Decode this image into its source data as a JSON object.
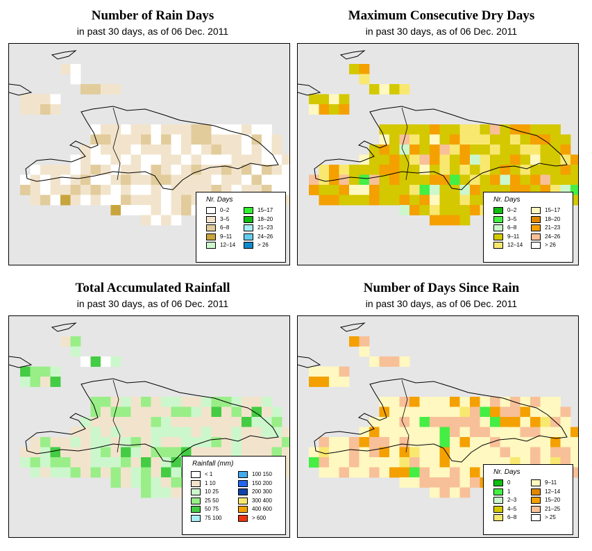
{
  "panels": [
    {
      "id": "rain_days",
      "title": "Number of Rain Days",
      "subtitle": "in past 30 days, as of  06 Dec. 2011",
      "legend": {
        "title": "Nr. Days",
        "items": [
          {
            "label": "0–2",
            "color": "#ffffff"
          },
          {
            "label": "3–5",
            "color": "#f2e4cc"
          },
          {
            "label": "6–8",
            "color": "#e2cc9c"
          },
          {
            "label": "9–11",
            "color": "#c8a43c"
          },
          {
            "label": "12–14",
            "color": "#ccf7cc"
          },
          {
            "label": "15–17",
            "color": "#33ee33"
          },
          {
            "label": "18–20",
            "color": "#11bb11"
          },
          {
            "label": "21–23",
            "color": "#aaeef6"
          },
          {
            "label": "24–26",
            "color": "#66ccee"
          },
          {
            "label": "> 26",
            "color": "#1188cc"
          }
        ]
      }
    },
    {
      "id": "dry_days",
      "title": "Maximum Consecutive Dry Days",
      "subtitle": "in past 30 days, as of  06 Dec. 2011",
      "legend": {
        "title": "Nr. Days",
        "items": [
          {
            "label": "0–2",
            "color": "#11bb11"
          },
          {
            "label": "3–5",
            "color": "#44ee44"
          },
          {
            "label": "6–8",
            "color": "#ccf7cc"
          },
          {
            "label": "9–11",
            "color": "#d4c800"
          },
          {
            "label": "12–14",
            "color": "#f8e870"
          },
          {
            "label": "15–17",
            "color": "#fff8c0"
          },
          {
            "label": "18–20",
            "color": "#dd8800"
          },
          {
            "label": "21–23",
            "color": "#f4a000"
          },
          {
            "label": "24–26",
            "color": "#f8c098"
          },
          {
            "label": "> 26",
            "color": "#ffffff"
          }
        ]
      }
    },
    {
      "id": "rainfall",
      "title": "Total Accumulated Rainfall",
      "subtitle": "in past 30 days, as of  06 Dec. 2011",
      "legend": {
        "title": "Rainfall (mm)",
        "items": [
          {
            "label": "< 1",
            "color": "#ffffff"
          },
          {
            "label": "1    10",
            "color": "#f2e4cc"
          },
          {
            "label": "10    25",
            "color": "#ccf7cc"
          },
          {
            "label": "25    50",
            "color": "#99ee88"
          },
          {
            "label": "50    75",
            "color": "#44cc44"
          },
          {
            "label": "75   100",
            "color": "#aaeef6"
          },
          {
            "label": "100   150",
            "color": "#44aaee"
          },
          {
            "label": "150   200",
            "color": "#2266ee"
          },
          {
            "label": "200   300",
            "color": "#1144aa"
          },
          {
            "label": "300   400",
            "color": "#f8e870"
          },
          {
            "label": "400   600",
            "color": "#f4a000"
          },
          {
            "label": "> 600",
            "color": "#ee3311"
          }
        ]
      }
    },
    {
      "id": "days_since",
      "title": "Number of Days Since Rain",
      "subtitle": "in past 30 days, as of  06 Dec. 2011",
      "legend": {
        "title": "Nr. Days",
        "items": [
          {
            "label": "0",
            "color": "#11bb11"
          },
          {
            "label": "1",
            "color": "#44ee44"
          },
          {
            "label": "2–3",
            "color": "#ccf7cc"
          },
          {
            "label": "4–5",
            "color": "#d4c800"
          },
          {
            "label": "6–8",
            "color": "#f8e870"
          },
          {
            "label": "9–11",
            "color": "#fff8c0"
          },
          {
            "label": "12–14",
            "color": "#dd8800"
          },
          {
            "label": "15–20",
            "color": "#f4a000"
          },
          {
            "label": "21–25",
            "color": "#f8c098"
          },
          {
            "label": "> 25",
            "color": "#ffffff"
          }
        ]
      }
    }
  ]
}
